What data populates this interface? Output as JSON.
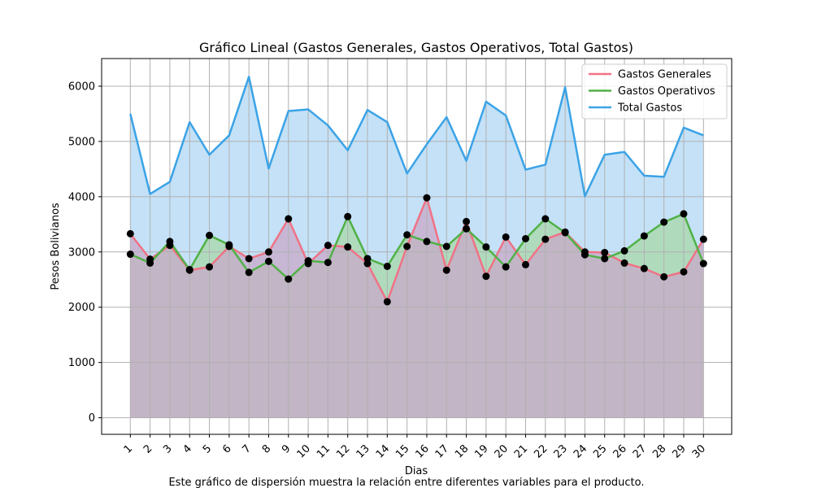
{
  "chart_data": {
    "type": "line",
    "title": "Gráfico Lineal (Gastos Generales, Gastos Operativos, Total Gastos)",
    "xlabel": "Dias",
    "ylabel": "Pesos Bolivianos",
    "caption": "Este gráfico de dispersión muestra la relación entre diferentes variables para el producto.",
    "x": [
      "1",
      "2",
      "3",
      "4",
      "5",
      "6",
      "7",
      "8",
      "9",
      "10",
      "11",
      "12",
      "13",
      "14",
      "15",
      "16",
      "17",
      "18",
      "19",
      "20",
      "21",
      "22",
      "23",
      "24",
      "25",
      "26",
      "27",
      "28",
      "29",
      "30"
    ],
    "ylim": [
      -300,
      6500
    ],
    "yticks": [
      0,
      1000,
      2000,
      3000,
      4000,
      5000,
      6000
    ],
    "grid": true,
    "legend_position": "top-right",
    "series": [
      {
        "name": "Gastos Generales",
        "color": "#f07285",
        "fill": "#c8a8c8",
        "values": [
          3330,
          2870,
          3120,
          2670,
          2730,
          3100,
          2880,
          3000,
          3600,
          2790,
          3120,
          3090,
          2790,
          2100,
          3100,
          3980,
          2670,
          3550,
          2560,
          3270,
          2770,
          3230,
          3360,
          3000,
          2990,
          2800,
          2700,
          2550,
          2640,
          3230
        ]
      },
      {
        "name": "Gastos Operativos",
        "color": "#50b147",
        "fill": "#a8d8a8",
        "values": [
          2960,
          2800,
          3190,
          2680,
          3300,
          3130,
          2630,
          2830,
          2510,
          2840,
          2810,
          3640,
          2880,
          2740,
          3310,
          3190,
          3100,
          3420,
          3090,
          2730,
          3240,
          3600,
          3350,
          2950,
          2880,
          3020,
          3290,
          3540,
          3690,
          2790
        ]
      },
      {
        "name": "Total Gastos",
        "color": "#3ba3e6",
        "fill": "#c4e1f7",
        "values": [
          5500,
          4050,
          4270,
          5350,
          4760,
          5110,
          6170,
          4510,
          5550,
          5580,
          5290,
          4840,
          5570,
          5350,
          4420,
          4950,
          5440,
          4650,
          5720,
          5470,
          4490,
          4580,
          5980,
          4010,
          4760,
          4810,
          4380,
          4360,
          5250,
          5110
        ]
      }
    ]
  }
}
